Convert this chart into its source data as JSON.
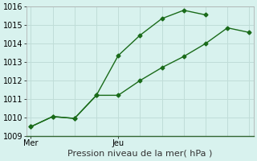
{
  "line1_x": [
    0,
    1,
    2,
    3,
    4,
    5,
    6,
    7,
    8
  ],
  "line1_y": [
    1009.5,
    1010.05,
    1009.95,
    1011.2,
    1013.35,
    1014.45,
    1015.35,
    1015.8,
    1015.55
  ],
  "line2_x": [
    0,
    1,
    2,
    3,
    4,
    5,
    6,
    7,
    8,
    9,
    10
  ],
  "line2_y": [
    1009.5,
    1010.05,
    1009.95,
    1011.2,
    1011.2,
    1012.0,
    1012.7,
    1013.3,
    1014.0,
    1014.85,
    1014.6
  ],
  "line_color": "#1a6b1a",
  "bg_color": "#d8f2ee",
  "grid_major_color": "#c0ddd8",
  "grid_minor_color": "#e0f0ed",
  "xlabel": "Pression niveau de la mer( hPa )",
  "ylim": [
    1009,
    1016
  ],
  "yticks": [
    1009,
    1010,
    1011,
    1012,
    1013,
    1014,
    1015,
    1016
  ],
  "xlim": [
    -0.2,
    10.2
  ],
  "mer_x": 0,
  "jeu_x": 4,
  "xtick_positions": [
    0,
    4
  ],
  "xtick_labels": [
    "Mer",
    "Jeu"
  ],
  "marker": "D",
  "markersize": 2.5,
  "linewidth": 1.0,
  "xlabel_fontsize": 8,
  "tick_fontsize": 7
}
